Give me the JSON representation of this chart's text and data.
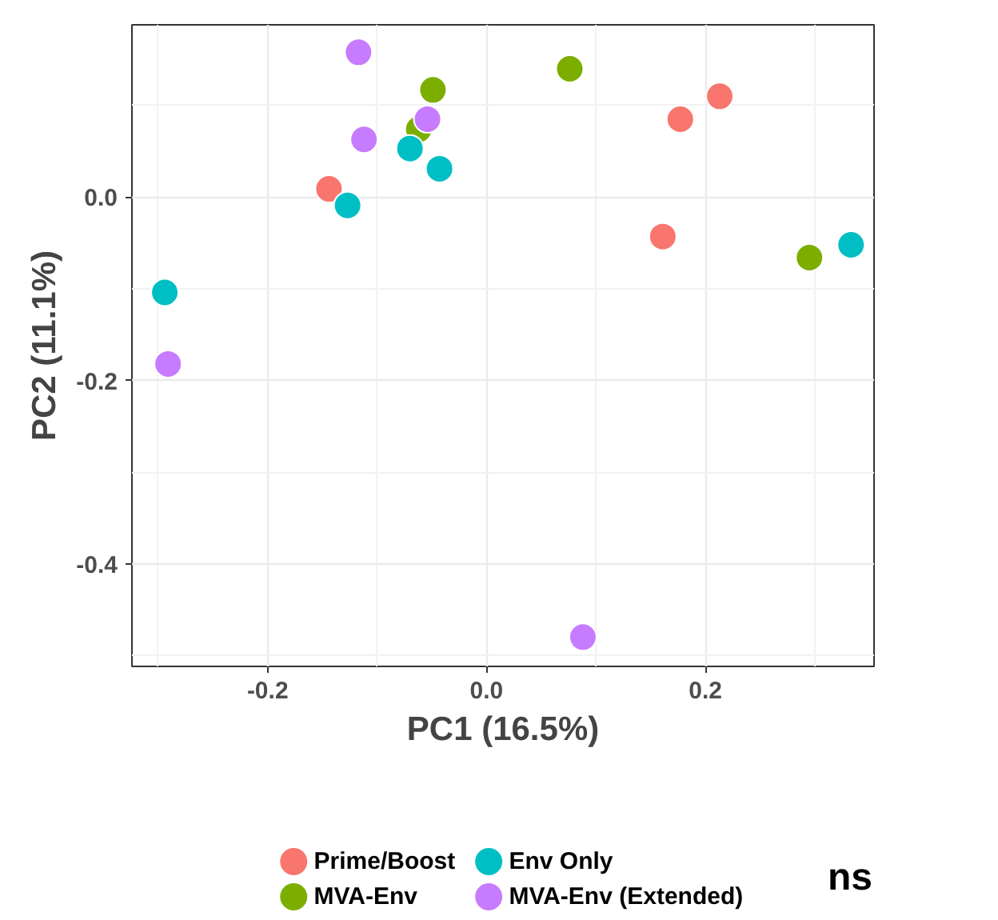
{
  "chart_data": {
    "type": "scatter",
    "xlabel": "PC1 (16.5%)",
    "ylabel": "PC2 (11.1%)",
    "xlim": [
      -0.324,
      0.354
    ],
    "ylim": [
      -0.512,
      0.188
    ],
    "xticks": [
      -0.2,
      {
        "value": 0,
        "label": "0.0"
      },
      0.2
    ],
    "yticks": [
      -0.4,
      -0.2,
      {
        "value": 0,
        "label": "0.0"
      }
    ],
    "grid": true,
    "legend": "bottom",
    "marker": "circle",
    "annotations": [
      "ns"
    ],
    "series": [
      {
        "name": "Prime/Boost",
        "color": "#f8766d",
        "x": [
          -0.144,
          0.177,
          0.213,
          0.161
        ],
        "values": [
          0.009,
          0.085,
          0.11,
          -0.043
        ]
      },
      {
        "name": "MVA-Env",
        "color": "#7cae00",
        "x": [
          -0.049,
          -0.062,
          0.076,
          0.295
        ],
        "values": [
          0.117,
          0.074,
          0.14,
          -0.066
        ]
      },
      {
        "name": "Env Only",
        "color": "#00bfc4",
        "x": [
          -0.07,
          -0.043,
          -0.127,
          -0.294,
          0.333
        ],
        "values": [
          0.053,
          0.031,
          -0.009,
          -0.104,
          -0.052
        ]
      },
      {
        "name": "MVA-Env (Extended)",
        "color": "#c77cff",
        "x": [
          -0.117,
          -0.054,
          -0.112,
          -0.291,
          0.088
        ],
        "values": [
          0.158,
          0.085,
          0.063,
          -0.182,
          -0.48
        ]
      }
    ]
  }
}
